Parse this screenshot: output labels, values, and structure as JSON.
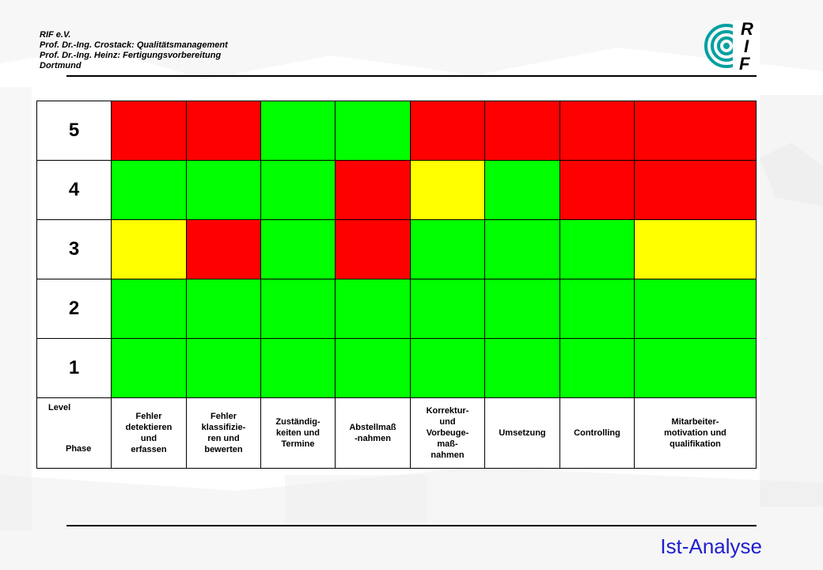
{
  "header": {
    "lines": [
      "RIF e.V.",
      "Prof. Dr.-Ing. Crostack: Qualitätsmanagement",
      "Prof. Dr.-Ing. Heinz: Fertigungsvorbereitung",
      "Dortmund"
    ]
  },
  "logo": {
    "letters": [
      "R",
      "I",
      "F"
    ],
    "accent_color": "#00a0a0"
  },
  "matrix": {
    "corner_level": "Level",
    "corner_phase": "Phase",
    "levels": [
      "5",
      "4",
      "3",
      "2",
      "1"
    ],
    "phases": [
      [
        "Fehler",
        "detektieren",
        "und",
        "erfassen"
      ],
      [
        "Fehler",
        "klassifizie-",
        "ren und",
        "bewerten"
      ],
      [
        "Zuständig-",
        "keiten und",
        "Termine"
      ],
      [
        "Abstellmaß",
        "-nahmen"
      ],
      [
        "Korrektur-",
        "und",
        "Vorbeuge-",
        "maß-",
        "nahmen"
      ],
      [
        "Umsetzung"
      ],
      [
        "Controlling"
      ],
      [
        "Mitarbeiter-",
        "motivation und",
        "qualifikation"
      ]
    ],
    "colors": {
      "red": "#ff0000",
      "green": "#00ff00",
      "yellow": "#ffff00"
    },
    "cells": [
      [
        "red",
        "red",
        "green",
        "green",
        "red",
        "red",
        "red",
        "red"
      ],
      [
        "green",
        "green",
        "green",
        "red",
        "yellow",
        "green",
        "red",
        "red"
      ],
      [
        "yellow",
        "red",
        "green",
        "red",
        "green",
        "green",
        "green",
        "yellow"
      ],
      [
        "green",
        "green",
        "green",
        "green",
        "green",
        "green",
        "green",
        "green"
      ],
      [
        "green",
        "green",
        "green",
        "green",
        "green",
        "green",
        "green",
        "green"
      ]
    ]
  },
  "footer": {
    "title": "Ist-Analyse",
    "title_color": "#1f1fcf"
  }
}
